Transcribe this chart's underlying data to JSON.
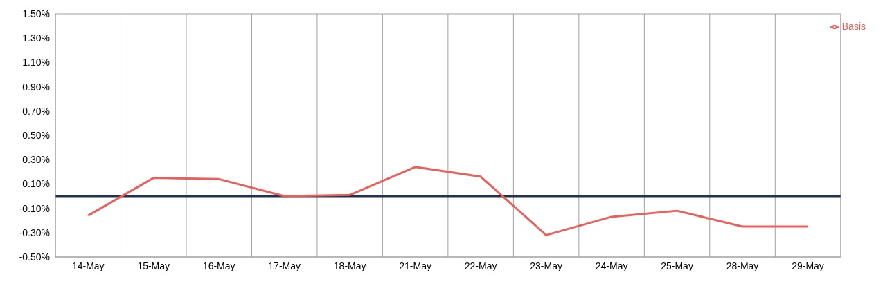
{
  "chart_data": {
    "type": "line",
    "categories": [
      "14-May",
      "15-May",
      "16-May",
      "17-May",
      "18-May",
      "21-May",
      "22-May",
      "23-May",
      "24-May",
      "25-May",
      "28-May",
      "29-May"
    ],
    "series": [
      {
        "name": "Basis",
        "color": "#e8605a",
        "values": [
          -0.16,
          0.15,
          0.14,
          0.0,
          0.01,
          0.24,
          0.16,
          -0.32,
          -0.17,
          -0.12,
          -0.25,
          -0.25
        ]
      }
    ],
    "ylim": [
      -0.5,
      1.5
    ],
    "yticks": [
      {
        "value": -0.5,
        "label": "-0.50%"
      },
      {
        "value": -0.3,
        "label": "-0.30%"
      },
      {
        "value": -0.1,
        "label": "-0.10%"
      },
      {
        "value": 0.1,
        "label": "0.10%"
      },
      {
        "value": 0.3,
        "label": "0.30%"
      },
      {
        "value": 0.5,
        "label": "0.50%"
      },
      {
        "value": 0.7,
        "label": "0.70%"
      },
      {
        "value": 0.9,
        "label": "0.90%"
      },
      {
        "value": 1.1,
        "label": "1.10%"
      },
      {
        "value": 1.3,
        "label": "1.30%"
      },
      {
        "value": 1.5,
        "label": "1.50%"
      }
    ],
    "ref_lines": [
      {
        "axis": "y",
        "value": 0,
        "color": "#1f3350"
      }
    ],
    "grid": true,
    "legend": "top right",
    "marker": "none",
    "line_style": "solid"
  }
}
